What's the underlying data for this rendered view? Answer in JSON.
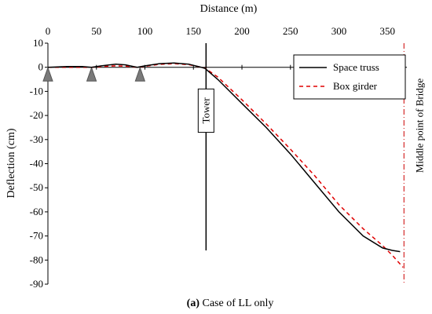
{
  "chart_data": {
    "type": "line",
    "xlabel": "Distance (m)",
    "ylabel": "Deflection (cm)",
    "xlim": [
      0,
      370
    ],
    "ylim": [
      -90,
      10
    ],
    "x_ticks": [
      0,
      50,
      100,
      150,
      200,
      250,
      300,
      350
    ],
    "y_ticks": [
      10,
      0,
      -10,
      -20,
      -30,
      -40,
      -50,
      -60,
      -70,
      -80,
      -90
    ],
    "x_axis_position": "top",
    "grid": false,
    "legend_placement": "top-right",
    "series": [
      {
        "name": "Space truss",
        "color": "#000000",
        "line_style": "solid",
        "x": [
          0,
          20,
          35,
          45,
          55,
          70,
          80,
          92,
          100,
          115,
          130,
          145,
          158,
          162,
          175,
          200,
          225,
          250,
          275,
          300,
          325,
          345,
          355,
          363
        ],
        "y": [
          0,
          0.3,
          0.3,
          0,
          0.6,
          1.3,
          1,
          0,
          0.6,
          1.5,
          1.8,
          1.3,
          0,
          -0.5,
          -5,
          -15,
          -25,
          -36,
          -48,
          -60,
          -70,
          -75,
          -76,
          -76.5
        ]
      },
      {
        "name": "Box girder",
        "color": "#e00000",
        "line_style": "dashed",
        "x": [
          0,
          20,
          35,
          45,
          55,
          70,
          80,
          92,
          100,
          115,
          130,
          145,
          158,
          162,
          175,
          200,
          225,
          250,
          275,
          300,
          325,
          345,
          355,
          366
        ],
        "y": [
          0,
          0,
          0,
          0,
          0.3,
          0.6,
          0.5,
          0,
          0.4,
          1.2,
          1.5,
          1.1,
          0,
          -0.4,
          -4,
          -13.5,
          -23.5,
          -34,
          -45,
          -57,
          -67,
          -74,
          -78,
          -83
        ]
      }
    ],
    "supports": [
      {
        "x": 0,
        "y": -2.3
      },
      {
        "x": 45,
        "y": -2.3
      },
      {
        "x": 95,
        "y": -2.3
      }
    ],
    "tower": {
      "x": 163,
      "y_top": 10,
      "y_bottom": -76,
      "label": "Tower"
    },
    "midpoint_line": {
      "x": 367,
      "label": "Middle point of Bridge",
      "color": "#cc0000"
    },
    "caption": {
      "prefix": "(a)",
      "text": " Case of LL only"
    }
  }
}
